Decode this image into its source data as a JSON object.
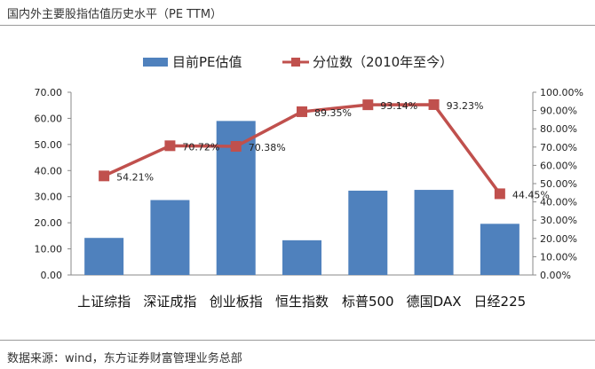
{
  "title": "国内外主要股指估值历史水平（PE TTM）",
  "source": "数据来源：wind，东方证券财富管理业务总部",
  "colors": {
    "bar": "#4f81bd",
    "line": "#c0504d"
  },
  "chart_data": {
    "type": "bar",
    "categories": [
      "上证综指",
      "深证成指",
      "创业板指",
      "恒生指数",
      "标普500",
      "德国DAX",
      "日经225"
    ],
    "series": [
      {
        "name": "目前PE估值",
        "type": "bar",
        "axis": "left",
        "values": [
          14.2,
          28.7,
          59.0,
          13.3,
          32.3,
          32.6,
          19.6
        ]
      },
      {
        "name": "分位数（2010年至今）",
        "type": "line",
        "axis": "right",
        "values": [
          54.21,
          70.72,
          70.38,
          89.35,
          93.14,
          93.23,
          44.45
        ],
        "labels": [
          "54.21%",
          "70.72%",
          "70.38%",
          "89.35%",
          "93.14%",
          "93.23%",
          "44.45%"
        ]
      }
    ],
    "y_left": {
      "range": [
        0,
        70
      ],
      "ticks": [
        "0.00",
        "10.00",
        "20.00",
        "30.00",
        "40.00",
        "50.00",
        "60.00",
        "70.00"
      ]
    },
    "y_right": {
      "range": [
        0,
        100
      ],
      "ticks": [
        "0.00%",
        "10.00%",
        "20.00%",
        "30.00%",
        "40.00%",
        "50.00%",
        "60.00%",
        "70.00%",
        "80.00%",
        "90.00%",
        "100.00%"
      ]
    },
    "legend_position": "top",
    "grid": false
  }
}
